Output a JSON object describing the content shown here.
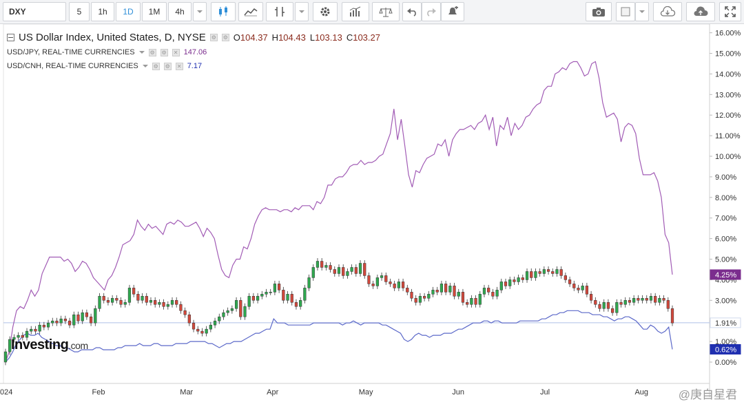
{
  "toolbar": {
    "symbol": "DXY",
    "intervals": [
      "5",
      "1h",
      "1D",
      "1M",
      "4h"
    ],
    "active_interval": "1D",
    "icons": [
      "caret-down-icon",
      "candlestick-icon",
      "line-chart-icon",
      "indicator-icon",
      "caret-down-icon",
      "settings-gear-icon",
      "bar-chart-icon",
      "balance-scale-icon",
      "undo-icon",
      "redo-icon",
      "alert-bell-icon",
      "camera-icon",
      "color-square-icon",
      "caret-down-icon",
      "cloud-download-icon",
      "cloud-upload-icon",
      "fullscreen-icon"
    ]
  },
  "legend": {
    "main": {
      "title": "US Dollar Index, United States, D, NYSE",
      "o_label": "O",
      "o": "104.37",
      "h_label": "H",
      "h": "104.43",
      "l_label": "L",
      "l": "103.13",
      "c_label": "C",
      "c": "103.27"
    },
    "overlays": [
      {
        "name": "USD/JPY, REAL-TIME CURRENCIES",
        "value": "147.06",
        "color": "#7b2d8e"
      },
      {
        "name": "USD/CNH, REAL-TIME CURRENCIES",
        "value": "7.17",
        "color": "#1f2fb0"
      }
    ]
  },
  "branding": {
    "logo_main": "Investing",
    "logo_suffix": ".com",
    "watermark": "@庚自星君"
  },
  "chart_data": {
    "type": "line",
    "title": "US Dollar Index, United States, D, NYSE",
    "ylabel_unit": "%",
    "ylim": [
      -0.2,
      16.3
    ],
    "y_ticks": [
      "0.00%",
      "1.00%",
      "2.00%",
      "3.00%",
      "4.00%",
      "5.00%",
      "6.00%",
      "7.00%",
      "8.00%",
      "9.00%",
      "10.00%",
      "11.00%",
      "12.00%",
      "13.00%",
      "14.00%",
      "15.00%",
      "16.00%"
    ],
    "x_ticks": [
      {
        "label": "024",
        "t": 0
      },
      {
        "label": "Feb",
        "t": 0.14
      },
      {
        "label": "Mar",
        "t": 0.272
      },
      {
        "label": "Apr",
        "t": 0.402
      },
      {
        "label": "May",
        "t": 0.54
      },
      {
        "label": "Jun",
        "t": 0.68
      },
      {
        "label": "Jul",
        "t": 0.812
      },
      {
        "label": "Aug",
        "t": 0.954
      }
    ],
    "last_value_labels": [
      {
        "series": "USD/JPY",
        "text": "4.25%",
        "value": 4.25,
        "color": "#7b2d8e"
      },
      {
        "series": "DXY",
        "text": "1.91%",
        "value": 1.91,
        "color": "#4f7fd4"
      },
      {
        "series": "USD/CNH",
        "text": "0.62%",
        "value": 0.62,
        "color": "#1f2fb0"
      }
    ],
    "series": [
      {
        "name": "USD/JPY",
        "color": "#a15bb5",
        "values": [
          0.0,
          0.5,
          1.7,
          2.5,
          2.7,
          2.6,
          3.0,
          3.5,
          3.2,
          3.5,
          4.3,
          4.7,
          5.1,
          5.1,
          5.1,
          5.1,
          4.9,
          5.0,
          4.8,
          4.4,
          4.6,
          4.9,
          4.8,
          4.5,
          4.1,
          3.9,
          3.7,
          3.5,
          4.0,
          4.2,
          4.6,
          5.1,
          5.7,
          5.8,
          5.9,
          6.2,
          6.9,
          6.6,
          6.4,
          6.7,
          6.5,
          6.6,
          6.4,
          6.2,
          6.7,
          6.8,
          6.7,
          6.9,
          6.8,
          6.6,
          6.6,
          6.7,
          6.8,
          6.5,
          6.1,
          6.5,
          6.3,
          6.0,
          5.2,
          4.5,
          4.2,
          4.1,
          4.7,
          5.0,
          5.0,
          5.6,
          5.5,
          6.0,
          6.7,
          7.1,
          7.4,
          7.5,
          7.4,
          7.4,
          7.4,
          7.3,
          7.4,
          7.4,
          7.3,
          7.5,
          7.4,
          7.6,
          7.6,
          7.6,
          7.4,
          7.8,
          7.7,
          8.0,
          8.6,
          8.6,
          8.9,
          9.0,
          9.0,
          9.2,
          9.5,
          9.6,
          9.6,
          9.8,
          9.6,
          9.7,
          9.7,
          9.8,
          10.0,
          10.1,
          10.6,
          11.1,
          12.3,
          10.8,
          11.8,
          10.5,
          9.1,
          8.5,
          9.3,
          9.2,
          9.6,
          9.9,
          10.0,
          10.1,
          10.6,
          10.5,
          10.8,
          10.0,
          10.8,
          11.1,
          11.3,
          11.3,
          11.4,
          11.5,
          11.3,
          11.6,
          11.7,
          12.0,
          11.3,
          11.9,
          10.5,
          11.5,
          11.3,
          11.9,
          11.0,
          11.6,
          11.3,
          11.5,
          11.9,
          12.0,
          12.3,
          12.5,
          12.6,
          13.2,
          13.4,
          13.4,
          14.0,
          14.1,
          14.3,
          14.2,
          14.5,
          14.6,
          14.6,
          14.3,
          13.9,
          14.0,
          14.5,
          14.6,
          13.8,
          12.6,
          11.9,
          12.0,
          12.1,
          11.8,
          10.7,
          11.4,
          11.6,
          11.5,
          11.1,
          9.9,
          9.1,
          9.1,
          9.1,
          9.2,
          8.8,
          8.0,
          6.2,
          5.8,
          4.25
        ]
      },
      {
        "name": "USD/CNH",
        "color": "#5b68c9",
        "values": [
          0.0,
          0.2,
          0.5,
          0.9,
          1.1,
          1.3,
          1.4,
          1.3,
          1.3,
          1.4,
          1.2,
          1.1,
          1.0,
          0.9,
          0.8,
          0.8,
          0.7,
          0.7,
          0.6,
          0.5,
          0.5,
          0.6,
          0.6,
          0.6,
          0.6,
          0.7,
          0.7,
          0.6,
          0.6,
          0.6,
          0.6,
          0.7,
          0.7,
          0.8,
          0.8,
          0.8,
          0.8,
          0.9,
          0.8,
          0.8,
          0.8,
          0.9,
          0.9,
          0.8,
          0.8,
          0.8,
          0.8,
          0.9,
          0.9,
          0.9,
          0.9,
          1.0,
          1.0,
          1.0,
          1.0,
          1.0,
          0.9,
          0.9,
          0.8,
          0.7,
          0.8,
          0.9,
          0.9,
          1.0,
          1.0,
          1.0,
          1.1,
          1.2,
          1.3,
          1.4,
          1.4,
          1.5,
          1.6,
          1.6,
          2.1,
          1.9,
          1.9,
          1.9,
          1.8,
          1.8,
          1.8,
          1.8,
          1.8,
          1.8,
          1.8,
          1.9,
          1.9,
          1.9,
          1.9,
          1.9,
          1.9,
          1.9,
          1.9,
          1.8,
          1.9,
          1.9,
          2.0,
          1.9,
          1.8,
          1.9,
          1.9,
          1.9,
          1.9,
          1.9,
          1.8,
          1.8,
          1.7,
          1.6,
          1.5,
          1.4,
          1.1,
          1.0,
          1.1,
          1.3,
          1.4,
          1.3,
          1.3,
          1.2,
          1.3,
          1.3,
          1.3,
          1.4,
          1.4,
          1.4,
          1.5,
          1.6,
          1.6,
          1.7,
          1.8,
          1.9,
          1.9,
          1.9,
          2.0,
          2.0,
          1.9,
          2.0,
          2.0,
          1.9,
          1.9,
          1.9,
          1.9,
          1.9,
          2.0,
          2.0,
          2.0,
          2.0,
          2.0,
          2.0,
          2.1,
          2.1,
          2.2,
          2.3,
          2.3,
          2.4,
          2.4,
          2.5,
          2.5,
          2.5,
          2.5,
          2.4,
          2.4,
          2.4,
          2.3,
          2.3,
          2.3,
          2.2,
          2.2,
          2.1,
          2.0,
          2.1,
          2.1,
          2.2,
          2.2,
          2.1,
          2.0,
          1.8,
          1.6,
          1.6,
          1.8,
          1.7,
          1.5,
          1.4,
          1.5,
          1.7,
          0.62
        ]
      }
    ],
    "candles": {
      "name": "DXY",
      "up_color": "#2fa84f",
      "down_color": "#d2483c",
      "values": [
        [
          0.0,
          0.5
        ],
        [
          0.5,
          1.1
        ],
        [
          1.1,
          1.2
        ],
        [
          1.2,
          1.3
        ],
        [
          1.3,
          1.2
        ],
        [
          1.2,
          1.5
        ],
        [
          1.5,
          1.6
        ],
        [
          1.6,
          1.5
        ],
        [
          1.5,
          1.8
        ],
        [
          1.8,
          1.7
        ],
        [
          1.7,
          1.9
        ],
        [
          1.9,
          2.0
        ],
        [
          2.0,
          1.9
        ],
        [
          1.9,
          2.1
        ],
        [
          2.1,
          2.0
        ],
        [
          2.0,
          1.8
        ],
        [
          1.8,
          2.3
        ],
        [
          2.3,
          2.0
        ],
        [
          2.0,
          2.4
        ],
        [
          2.4,
          2.2
        ],
        [
          2.2,
          1.9
        ],
        [
          1.9,
          2.6
        ],
        [
          2.6,
          3.2
        ],
        [
          3.2,
          3.0
        ],
        [
          3.0,
          2.9
        ],
        [
          2.9,
          3.1
        ],
        [
          3.1,
          3.0
        ],
        [
          3.0,
          2.8
        ],
        [
          2.8,
          2.9
        ],
        [
          2.9,
          3.6
        ],
        [
          3.6,
          3.3
        ],
        [
          3.3,
          3.0
        ],
        [
          3.0,
          3.2
        ],
        [
          3.2,
          2.9
        ],
        [
          2.9,
          3.0
        ],
        [
          3.0,
          2.8
        ],
        [
          2.8,
          2.9
        ],
        [
          2.9,
          2.7
        ],
        [
          2.7,
          2.8
        ],
        [
          2.8,
          3.0
        ],
        [
          3.0,
          2.8
        ],
        [
          2.8,
          2.5
        ],
        [
          2.5,
          2.3
        ],
        [
          2.3,
          1.9
        ],
        [
          1.9,
          1.6
        ],
        [
          1.6,
          1.5
        ],
        [
          1.5,
          1.4
        ],
        [
          1.4,
          1.6
        ],
        [
          1.6,
          1.8
        ],
        [
          1.8,
          2.0
        ],
        [
          2.0,
          2.2
        ],
        [
          2.2,
          2.4
        ],
        [
          2.4,
          2.5
        ],
        [
          2.5,
          2.6
        ],
        [
          2.6,
          3.0
        ],
        [
          3.0,
          2.2
        ],
        [
          2.2,
          2.7
        ],
        [
          2.7,
          3.2
        ],
        [
          3.2,
          3.0
        ],
        [
          3.0,
          3.2
        ],
        [
          3.2,
          3.3
        ],
        [
          3.3,
          3.4
        ],
        [
          3.4,
          3.4
        ],
        [
          3.4,
          3.8
        ],
        [
          3.8,
          3.5
        ],
        [
          3.5,
          3.0
        ],
        [
          3.0,
          3.3
        ],
        [
          3.3,
          2.9
        ],
        [
          2.9,
          2.7
        ],
        [
          2.7,
          3.0
        ],
        [
          3.0,
          3.6
        ],
        [
          3.6,
          4.1
        ],
        [
          4.1,
          4.6
        ],
        [
          4.6,
          4.9
        ],
        [
          4.9,
          4.6
        ],
        [
          4.6,
          4.7
        ],
        [
          4.7,
          4.5
        ],
        [
          4.5,
          4.3
        ],
        [
          4.3,
          4.6
        ],
        [
          4.6,
          4.2
        ],
        [
          4.2,
          4.4
        ],
        [
          4.4,
          4.6
        ],
        [
          4.6,
          4.3
        ],
        [
          4.3,
          4.8
        ],
        [
          4.8,
          4.2
        ],
        [
          4.2,
          3.8
        ],
        [
          3.8,
          3.7
        ],
        [
          3.7,
          4.1
        ],
        [
          4.1,
          4.2
        ],
        [
          4.2,
          3.9
        ],
        [
          3.9,
          3.8
        ],
        [
          3.8,
          3.6
        ],
        [
          3.6,
          3.9
        ],
        [
          3.9,
          3.6
        ],
        [
          3.6,
          3.4
        ],
        [
          3.4,
          3.1
        ],
        [
          3.1,
          2.9
        ],
        [
          2.9,
          3.2
        ],
        [
          3.2,
          3.1
        ],
        [
          3.1,
          3.3
        ],
        [
          3.3,
          3.5
        ],
        [
          3.5,
          3.4
        ],
        [
          3.4,
          3.8
        ],
        [
          3.8,
          3.4
        ],
        [
          3.4,
          3.7
        ],
        [
          3.7,
          3.2
        ],
        [
          3.2,
          3.4
        ],
        [
          3.4,
          2.9
        ],
        [
          2.9,
          2.8
        ],
        [
          2.8,
          3.1
        ],
        [
          3.1,
          2.8
        ],
        [
          2.8,
          3.3
        ],
        [
          3.3,
          3.6
        ],
        [
          3.6,
          3.4
        ],
        [
          3.4,
          3.2
        ],
        [
          3.2,
          3.5
        ],
        [
          3.5,
          3.9
        ],
        [
          3.9,
          3.7
        ],
        [
          3.7,
          4.0
        ],
        [
          4.0,
          3.9
        ],
        [
          3.9,
          4.1
        ],
        [
          4.1,
          4.0
        ],
        [
          4.0,
          4.4
        ],
        [
          4.4,
          4.1
        ],
        [
          4.1,
          4.4
        ],
        [
          4.4,
          4.3
        ],
        [
          4.3,
          4.5
        ],
        [
          4.5,
          4.4
        ],
        [
          4.4,
          4.3
        ],
        [
          4.3,
          4.5
        ],
        [
          4.5,
          4.2
        ],
        [
          4.2,
          4.0
        ],
        [
          4.0,
          3.8
        ],
        [
          3.8,
          3.6
        ],
        [
          3.6,
          3.5
        ],
        [
          3.5,
          3.7
        ],
        [
          3.7,
          3.3
        ],
        [
          3.3,
          3.0
        ],
        [
          3.0,
          2.8
        ],
        [
          2.8,
          2.6
        ],
        [
          2.6,
          2.9
        ],
        [
          2.9,
          2.6
        ],
        [
          2.6,
          2.4
        ],
        [
          2.4,
          2.9
        ],
        [
          2.9,
          2.8
        ],
        [
          2.8,
          3.0
        ],
        [
          3.0,
          2.9
        ],
        [
          2.9,
          3.1
        ],
        [
          3.1,
          3.0
        ],
        [
          3.0,
          3.1
        ],
        [
          3.1,
          3.0
        ],
        [
          3.0,
          3.2
        ],
        [
          3.2,
          2.9
        ],
        [
          2.9,
          3.1
        ],
        [
          3.1,
          3.0
        ],
        [
          3.0,
          2.6
        ],
        [
          2.6,
          1.9
        ]
      ]
    },
    "reference_line": {
      "series": "DXY",
      "value": 1.91,
      "color": "#aebfe6"
    }
  }
}
